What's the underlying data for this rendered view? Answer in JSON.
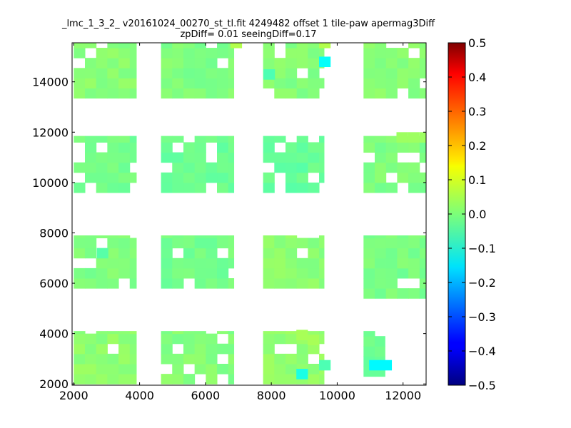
{
  "chart_data": {
    "type": "heatmap",
    "title": "_lmc_1_3_2_ v20161024_00270_st_tl.fit 4249482 offset 1 tile-paw apermag3Diff",
    "subtitle": "zpDiff= 0.01 seeingDiff=0.17",
    "xlabel": "",
    "ylabel": "",
    "xlim": [
      1950,
      12700
    ],
    "ylim": [
      1950,
      15550
    ],
    "x_ticks": [
      "2000",
      "4000",
      "6000",
      "8000",
      "10000",
      "12000"
    ],
    "y_ticks": [
      "2000",
      "4000",
      "6000",
      "8000",
      "10000",
      "12000",
      "14000"
    ],
    "colorbar": {
      "colormap": "jet",
      "range": [
        -0.5,
        0.5
      ],
      "ticks": [
        "0.5",
        "0.4",
        "0.3",
        "0.2",
        "0.1",
        "0.0",
        "−0.1",
        "−0.2",
        "−0.3",
        "−0.4",
        "−0.5"
      ]
    },
    "cell_size": [
      340,
      400
    ],
    "blocks": [
      {
        "x": [
          2000,
          3900
        ],
        "y": [
          2000,
          4100
        ],
        "value": 0.015
      },
      {
        "x": [
          4650,
          6860
        ],
        "y": [
          2000,
          4100
        ],
        "value": 0.005
      },
      {
        "x": [
          7750,
          9600
        ],
        "y": [
          2000,
          4100
        ],
        "value": 0.02
      },
      {
        "x": [
          10800,
          11450
        ],
        "y": [
          2300,
          4100
        ],
        "value": -0.02
      },
      {
        "x": [
          2000,
          3900
        ],
        "y": [
          5800,
          7900
        ],
        "value": 0.0
      },
      {
        "x": [
          4650,
          6860
        ],
        "y": [
          5800,
          7900
        ],
        "value": -0.01
      },
      {
        "x": [
          7750,
          9600
        ],
        "y": [
          5800,
          7900
        ],
        "value": 0.01
      },
      {
        "x": [
          10800,
          12700
        ],
        "y": [
          5400,
          7900
        ],
        "value": -0.005
      },
      {
        "x": [
          2000,
          3900
        ],
        "y": [
          9600,
          11850
        ],
        "value": -0.01
      },
      {
        "x": [
          4650,
          6860
        ],
        "y": [
          9600,
          11850
        ],
        "value": -0.02
      },
      {
        "x": [
          7750,
          9600
        ],
        "y": [
          9600,
          11850
        ],
        "value": -0.025
      },
      {
        "x": [
          10800,
          12700
        ],
        "y": [
          9600,
          11850
        ],
        "value": 0.0
      },
      {
        "x": [
          2000,
          3900
        ],
        "y": [
          13350,
          15550
        ],
        "value": 0.01
      },
      {
        "x": [
          4650,
          6860
        ],
        "y": [
          13350,
          15550
        ],
        "value": 0.0
      },
      {
        "x": [
          7750,
          9600
        ],
        "y": [
          13350,
          15550
        ],
        "value": 0.005
      },
      {
        "x": [
          10800,
          12700
        ],
        "y": [
          13350,
          15550
        ],
        "value": 0.01
      }
    ],
    "outliers": [
      {
        "x": 9450,
        "y": 14600,
        "value": -0.12
      },
      {
        "x": 10970,
        "y": 2550,
        "value": -0.13
      },
      {
        "x": 11310,
        "y": 2550,
        "value": -0.13
      },
      {
        "x": 8760,
        "y": 2200,
        "value": -0.1
      },
      {
        "x": 9450,
        "y": 2550,
        "value": -0.05
      },
      {
        "x": 7760,
        "y": 14100,
        "value": -0.05
      },
      {
        "x": 8760,
        "y": 3750,
        "value": 0.04
      },
      {
        "x": 9100,
        "y": 3550,
        "value": 0.04
      },
      {
        "x": 9450,
        "y": 15350,
        "value": 0.05
      },
      {
        "x": 6760,
        "y": 15350,
        "value": 0.05
      },
      {
        "x": 11800,
        "y": 11600,
        "value": 0.03
      },
      {
        "x": 12150,
        "y": 11600,
        "value": 0.03
      },
      {
        "x": 12500,
        "y": 11600,
        "value": 0.03
      },
      {
        "x": 2700,
        "y": 7000,
        "value": -0.04
      }
    ]
  }
}
